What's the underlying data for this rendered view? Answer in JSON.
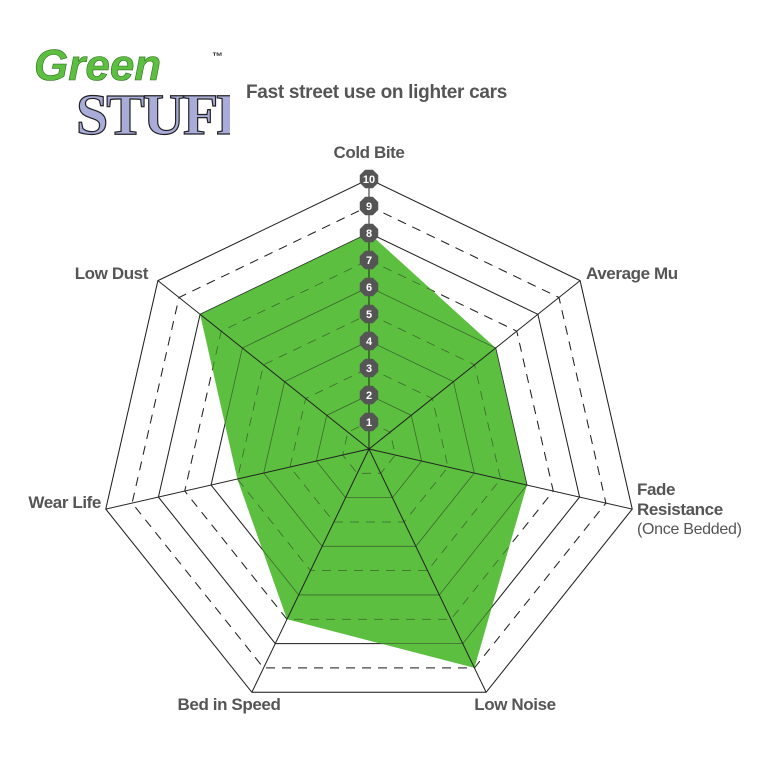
{
  "logo": {
    "text_top": "Green",
    "text_bottom": "STUFF",
    "trademark": "™",
    "colors": {
      "green": "#5cbf3f",
      "lavender": "#a9acd9"
    }
  },
  "subtitle": "Fast street use on lighter cars",
  "chart_data": {
    "type": "radar",
    "title": "",
    "axes": [
      {
        "label": "Cold Bite",
        "sublabel": ""
      },
      {
        "label": "Average Mu",
        "sublabel": ""
      },
      {
        "label": "Fade Resistance",
        "sublabel": "(Once Bedded)"
      },
      {
        "label": "Low Noise",
        "sublabel": ""
      },
      {
        "label": "Bed in Speed",
        "sublabel": ""
      },
      {
        "label": "Wear Life",
        "sublabel": ""
      },
      {
        "label": "Low Dust",
        "sublabel": ""
      }
    ],
    "values": [
      8,
      6,
      6,
      9,
      7,
      5,
      8
    ],
    "range": [
      0,
      10
    ],
    "scale_labels": [
      "1",
      "2",
      "3",
      "4",
      "5",
      "6",
      "7",
      "8",
      "9",
      "10"
    ],
    "fill_color": "#5cbf3f",
    "grid_color": "#222222",
    "badge_color": "#555555"
  }
}
